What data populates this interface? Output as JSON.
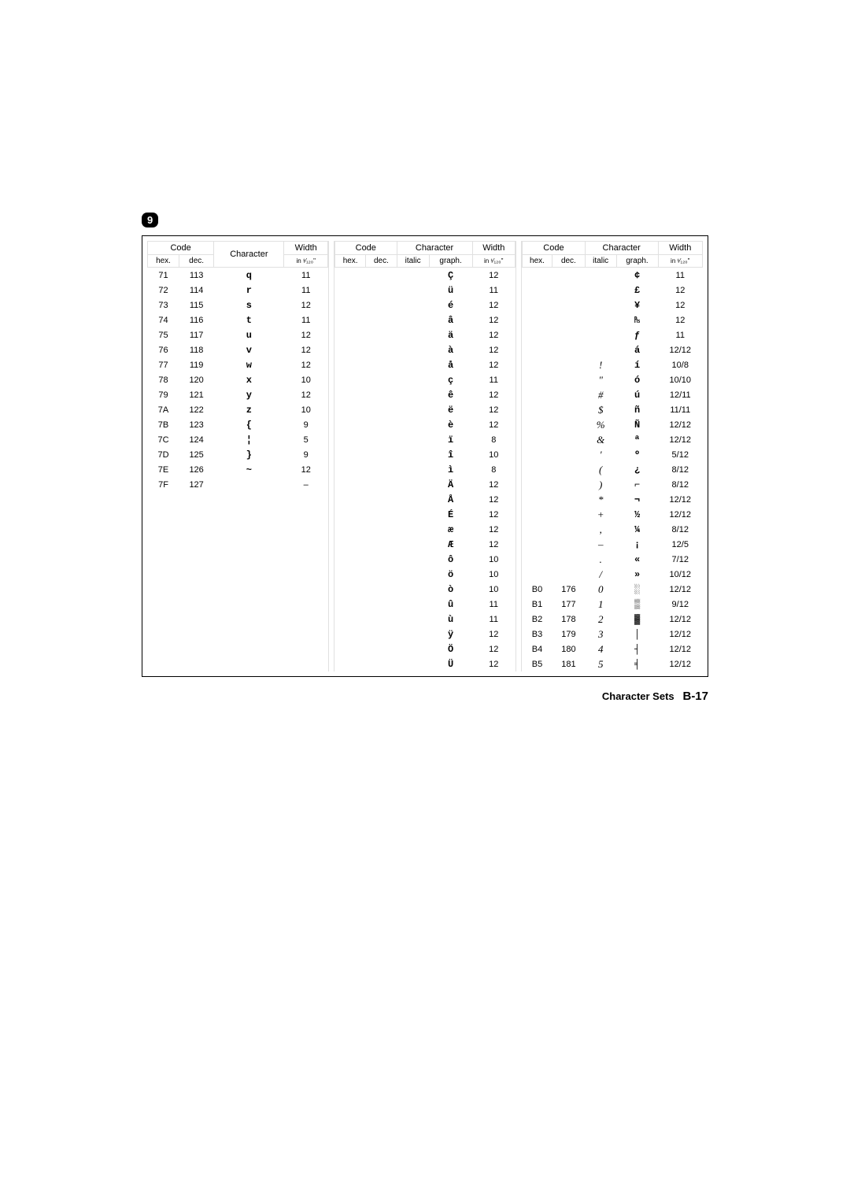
{
  "tab_number": "9",
  "headers": {
    "code": "Code",
    "character": "Character",
    "width": "Width",
    "width_sub": "in ¹⁄₁₂₀\"",
    "hex": "hex.",
    "dec": "dec.",
    "italic": "italic",
    "graph": "graph."
  },
  "block1": [
    {
      "hex": "71",
      "dec": "113",
      "char": "q",
      "w": "11"
    },
    {
      "hex": "72",
      "dec": "114",
      "char": "r",
      "w": "11"
    },
    {
      "hex": "73",
      "dec": "115",
      "char": "s",
      "w": "12"
    },
    {
      "hex": "74",
      "dec": "116",
      "char": "t",
      "w": "11"
    },
    {
      "hex": "75",
      "dec": "117",
      "char": "u",
      "w": "12"
    },
    {
      "hex": "76",
      "dec": "118",
      "char": "v",
      "w": "12"
    },
    {
      "hex": "77",
      "dec": "119",
      "char": "w",
      "w": "12"
    },
    {
      "hex": "78",
      "dec": "120",
      "char": "x",
      "w": "10"
    },
    {
      "hex": "79",
      "dec": "121",
      "char": "y",
      "w": "12"
    },
    {
      "hex": "7A",
      "dec": "122",
      "char": "z",
      "w": "10"
    },
    {
      "hex": "7B",
      "dec": "123",
      "char": "{",
      "w": "9"
    },
    {
      "hex": "7C",
      "dec": "124",
      "char": "¦",
      "w": "5"
    },
    {
      "hex": "7D",
      "dec": "125",
      "char": "}",
      "w": "9"
    },
    {
      "hex": "7E",
      "dec": "126",
      "char": "~",
      "w": "12"
    },
    {
      "hex": "7F",
      "dec": "127",
      "char": "",
      "w": "–"
    }
  ],
  "block2": [
    {
      "graph": "Ç",
      "w": "12"
    },
    {
      "graph": "ü",
      "w": "11"
    },
    {
      "graph": "é",
      "w": "12"
    },
    {
      "graph": "â",
      "w": "12"
    },
    {
      "graph": "ä",
      "w": "12"
    },
    {
      "graph": "à",
      "w": "12"
    },
    {
      "graph": "å",
      "w": "12"
    },
    {
      "graph": "ç",
      "w": "11"
    },
    {
      "graph": "ê",
      "w": "12"
    },
    {
      "graph": "ë",
      "w": "12"
    },
    {
      "graph": "è",
      "w": "12"
    },
    {
      "graph": "ï",
      "w": "8"
    },
    {
      "graph": "î",
      "w": "10"
    },
    {
      "graph": "ì",
      "w": "8"
    },
    {
      "graph": "Ä",
      "w": "12"
    },
    {
      "graph": "Å",
      "w": "12"
    },
    {
      "graph": "É",
      "w": "12"
    },
    {
      "graph": "æ",
      "w": "12"
    },
    {
      "graph": "Æ",
      "w": "12"
    },
    {
      "graph": "ô",
      "w": "10"
    },
    {
      "graph": "ö",
      "w": "10"
    },
    {
      "graph": "ò",
      "w": "10"
    },
    {
      "graph": "û",
      "w": "11"
    },
    {
      "graph": "ù",
      "w": "11"
    },
    {
      "graph": "ÿ",
      "w": "12"
    },
    {
      "graph": "Ö",
      "w": "12"
    },
    {
      "graph": "Ü",
      "w": "12"
    }
  ],
  "block3": [
    {
      "hex": "",
      "dec": "",
      "ital": "",
      "graph": "¢",
      "w": "11"
    },
    {
      "hex": "",
      "dec": "",
      "ital": "",
      "graph": "£",
      "w": "12"
    },
    {
      "hex": "",
      "dec": "",
      "ital": "",
      "graph": "¥",
      "w": "12"
    },
    {
      "hex": "",
      "dec": "",
      "ital": "",
      "graph": "₧",
      "w": "12"
    },
    {
      "hex": "",
      "dec": "",
      "ital": "",
      "graph": "ƒ",
      "w": "11"
    },
    {
      "hex": "",
      "dec": "",
      "ital": "",
      "graph": "á",
      "w": "12/12"
    },
    {
      "hex": "",
      "dec": "",
      "ital": "!",
      "graph": "í",
      "w": "10/8"
    },
    {
      "hex": "",
      "dec": "",
      "ital": "\"",
      "graph": "ó",
      "w": "10/10"
    },
    {
      "hex": "",
      "dec": "",
      "ital": "#",
      "graph": "ú",
      "w": "12/11"
    },
    {
      "hex": "",
      "dec": "",
      "ital": "$",
      "graph": "ñ",
      "w": "11/11"
    },
    {
      "hex": "",
      "dec": "",
      "ital": "%",
      "graph": "Ñ",
      "w": "12/12"
    },
    {
      "hex": "",
      "dec": "",
      "ital": "&",
      "graph": "ª",
      "w": "12/12"
    },
    {
      "hex": "",
      "dec": "",
      "ital": "'",
      "graph": "º",
      "w": "5/12"
    },
    {
      "hex": "",
      "dec": "",
      "ital": "(",
      "graph": "¿",
      "w": "8/12"
    },
    {
      "hex": "",
      "dec": "",
      "ital": ")",
      "graph": "⌐",
      "w": "8/12"
    },
    {
      "hex": "",
      "dec": "",
      "ital": "*",
      "graph": "¬",
      "w": "12/12"
    },
    {
      "hex": "",
      "dec": "",
      "ital": "+",
      "graph": "½",
      "w": "12/12"
    },
    {
      "hex": "",
      "dec": "",
      "ital": ",",
      "graph": "¼",
      "w": "8/12"
    },
    {
      "hex": "",
      "dec": "",
      "ital": "–",
      "graph": "¡",
      "w": "12/5"
    },
    {
      "hex": "",
      "dec": "",
      "ital": ".",
      "graph": "«",
      "w": "7/12"
    },
    {
      "hex": "",
      "dec": "",
      "ital": "/",
      "graph": "»",
      "w": "10/12"
    },
    {
      "hex": "B0",
      "dec": "176",
      "ital": "0",
      "graph": "░",
      "w": "12/12"
    },
    {
      "hex": "B1",
      "dec": "177",
      "ital": "1",
      "graph": "▒",
      "w": "9/12"
    },
    {
      "hex": "B2",
      "dec": "178",
      "ital": "2",
      "graph": "▓",
      "w": "12/12"
    },
    {
      "hex": "B3",
      "dec": "179",
      "ital": "3",
      "graph": "│",
      "w": "12/12"
    },
    {
      "hex": "B4",
      "dec": "180",
      "ital": "4",
      "graph": "┤",
      "w": "12/12"
    },
    {
      "hex": "B5",
      "dec": "181",
      "ital": "5",
      "graph": "╡",
      "w": "12/12"
    }
  ],
  "footer": {
    "label": "Character Sets",
    "page": "B-17"
  }
}
